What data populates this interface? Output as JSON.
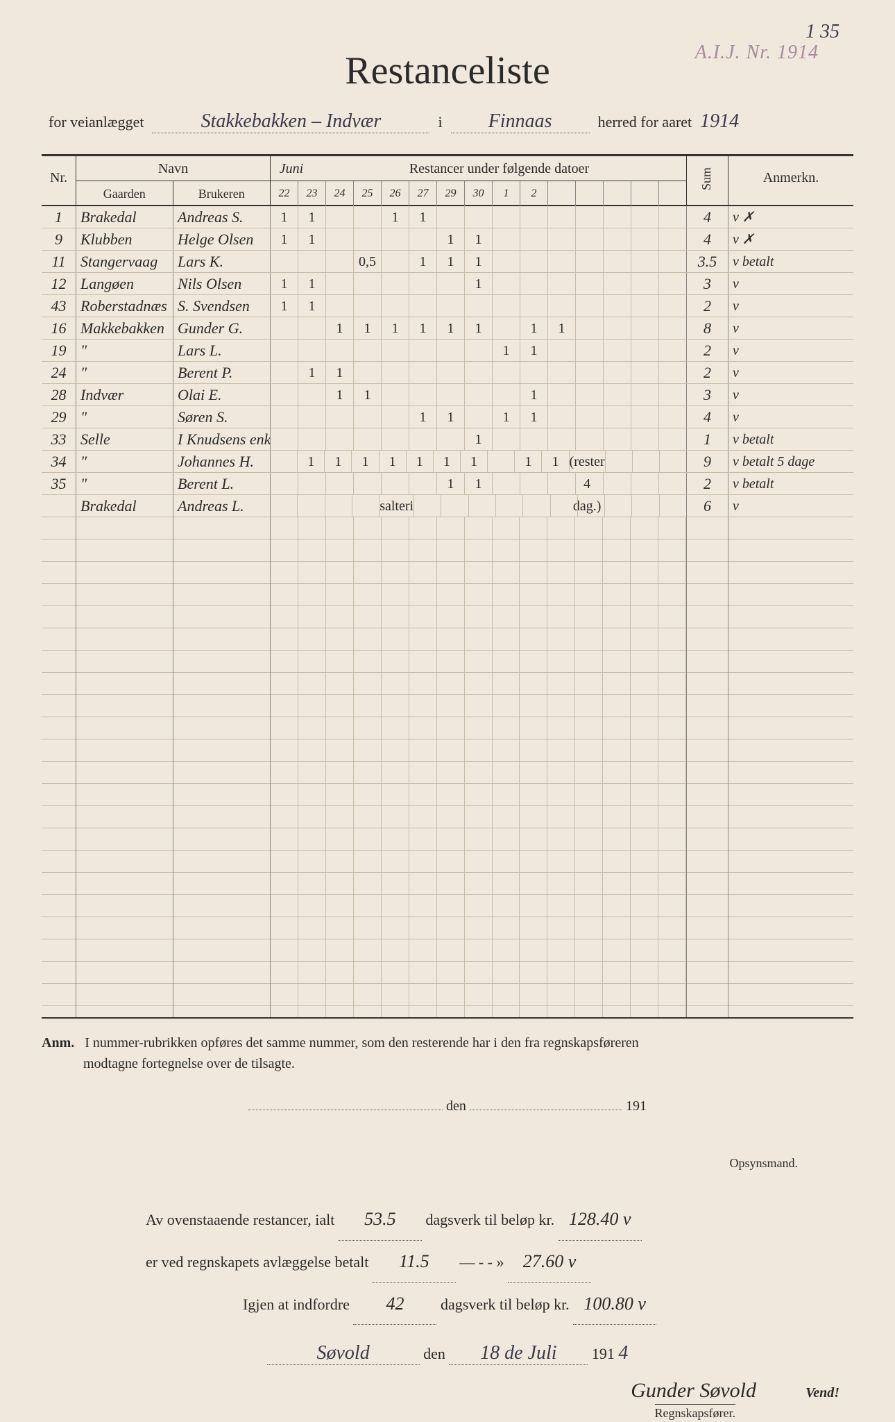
{
  "page_numbers": "1   35",
  "stamp": "A.I.J. Nr. 1914",
  "title": "Restanceliste",
  "subtitle": {
    "prefix": "for veianlægget",
    "road": "Stakkebakken – Indvær",
    "i": "i",
    "district": "Finnaas",
    "suffix": "herred for aaret",
    "year": "1914"
  },
  "headers": {
    "nr": "Nr.",
    "navn": "Navn",
    "gaarden": "Gaarden",
    "brukeren": "Brukeren",
    "month1": "Juni",
    "restancer": "Restancer under følgende datoer",
    "dates": [
      "22",
      "23",
      "24",
      "25",
      "26",
      "27",
      "29",
      "30",
      "1",
      "2",
      "",
      "",
      "",
      "",
      ""
    ],
    "sum": "Sum",
    "anmerkn": "Anmerkn."
  },
  "rows": [
    {
      "nr": "1",
      "gaarden": "Brakedal",
      "brukeren": "Andreas S.",
      "marks": [
        "1",
        "1",
        "",
        "",
        "1",
        "1",
        "",
        "",
        "",
        "",
        "",
        "",
        "",
        "",
        ""
      ],
      "sum": "4",
      "anmerk": "v ✗"
    },
    {
      "nr": "9",
      "gaarden": "Klubben",
      "brukeren": "Helge Olsen",
      "marks": [
        "1",
        "1",
        "",
        "",
        "",
        "",
        "1",
        "1",
        "",
        "",
        "",
        "",
        "",
        "",
        ""
      ],
      "sum": "4",
      "anmerk": "v ✗"
    },
    {
      "nr": "11",
      "gaarden": "Stangervaag",
      "brukeren": "Lars K.",
      "marks": [
        "",
        "",
        "",
        "0,5",
        "",
        "1",
        "1",
        "1",
        "",
        "",
        "",
        "",
        "",
        "",
        ""
      ],
      "sum": "3.5",
      "anmerk": "v betalt"
    },
    {
      "nr": "12",
      "gaarden": "Langøen",
      "brukeren": "Nils Olsen",
      "marks": [
        "1",
        "1",
        "",
        "",
        "",
        "",
        "",
        "1",
        "",
        "",
        "",
        "",
        "",
        "",
        ""
      ],
      "sum": "3",
      "anmerk": "v"
    },
    {
      "nr": "43",
      "gaarden": "Roberstadnæs",
      "brukeren": "S. Svendsen",
      "marks": [
        "1",
        "1",
        "",
        "",
        "",
        "",
        "",
        "",
        "",
        "",
        "",
        "",
        "",
        "",
        ""
      ],
      "sum": "2",
      "anmerk": "v"
    },
    {
      "nr": "16",
      "gaarden": "Makkebakken",
      "brukeren": "Gunder G.",
      "marks": [
        "",
        "",
        "1",
        "1",
        "1",
        "1",
        "1",
        "1",
        "",
        "1",
        "1",
        "",
        "",
        "",
        ""
      ],
      "sum": "8",
      "anmerk": "v"
    },
    {
      "nr": "19",
      "gaarden": "\"",
      "brukeren": "Lars L.",
      "marks": [
        "",
        "",
        "",
        "",
        "",
        "",
        "",
        "",
        "1",
        "1",
        "",
        "",
        "",
        "",
        ""
      ],
      "sum": "2",
      "anmerk": "v"
    },
    {
      "nr": "24",
      "gaarden": "\"",
      "brukeren": "Berent P.",
      "marks": [
        "",
        "1",
        "1",
        "",
        "",
        "",
        "",
        "",
        "",
        "",
        "",
        "",
        "",
        "",
        ""
      ],
      "sum": "2",
      "anmerk": "v"
    },
    {
      "nr": "28",
      "gaarden": "Indvær",
      "brukeren": "Olai E.",
      "marks": [
        "",
        "",
        "1",
        "1",
        "",
        "",
        "",
        "",
        "",
        "1",
        "",
        "",
        "",
        "",
        ""
      ],
      "sum": "3",
      "anmerk": "v"
    },
    {
      "nr": "29",
      "gaarden": "\"",
      "brukeren": "Søren S.",
      "marks": [
        "",
        "",
        "",
        "",
        "",
        "1",
        "1",
        "",
        "1",
        "1",
        "",
        "",
        "",
        "",
        ""
      ],
      "sum": "4",
      "anmerk": "v"
    },
    {
      "nr": "33",
      "gaarden": "Selle",
      "brukeren": "I Knudsens enke",
      "marks": [
        "",
        "",
        "",
        "",
        "",
        "",
        "",
        "1",
        "",
        "",
        "",
        "",
        "",
        "",
        ""
      ],
      "sum": "1",
      "anmerk": "v betalt"
    },
    {
      "nr": "34",
      "gaarden": "\"",
      "brukeren": "Johannes H.",
      "marks": [
        "",
        "1",
        "1",
        "1",
        "1",
        "1",
        "1",
        "1",
        "",
        "1",
        "1",
        "(rester 4 dag.)",
        "",
        "",
        ""
      ],
      "sum": "9",
      "anmerk": "v betalt 5 dage"
    },
    {
      "nr": "35",
      "gaarden": "\"",
      "brukeren": "Berent L.",
      "marks": [
        "",
        "",
        "",
        "",
        "",
        "",
        "1",
        "1",
        "",
        "",
        "",
        "",
        "",
        "",
        ""
      ],
      "sum": "2",
      "anmerk": "v betalt"
    },
    {
      "nr": "",
      "gaarden": "Brakedal",
      "brukeren": "Andreas L.",
      "marks": [
        "",
        "",
        "",
        "",
        "salteri",
        "",
        "",
        "",
        "",
        "",
        "",
        "",
        "",
        "",
        ""
      ],
      "sum": "6",
      "anmerk": "v"
    }
  ],
  "anm": {
    "label": "Anm.",
    "text1": "I nummer-rubrikken opføres det samme nummer, som den resterende har i den fra regnskapsføreren",
    "text2": "modtagne fortegnelse over de tilsagte."
  },
  "mid_date": {
    "den": "den",
    "y": "191"
  },
  "opsynsmand": "Opsynsmand.",
  "totals": {
    "line1a": "Av ovenstaaende restancer, ialt",
    "val1": "53.5",
    "line1b": "dagsverk til beløp kr.",
    "kr1": "128.40 v",
    "line2a": "er ved regnskapets avlæggelse betalt",
    "val2": "11.5",
    "line2b": "—     -     -     »",
    "kr2": "27.60 v",
    "line3a": "Igjen at indfordre",
    "val3": "42",
    "line3b": "dagsverk til beløp kr.",
    "kr3": "100.80 v"
  },
  "place_date": {
    "place": "Søvold",
    "den": "den",
    "date": "18 de Juli",
    "year_prefix": "191",
    "year_suffix": "4"
  },
  "signature": "Gunder Søvold",
  "regnskap": "Regnskapsfører.",
  "vend": "Vend!"
}
